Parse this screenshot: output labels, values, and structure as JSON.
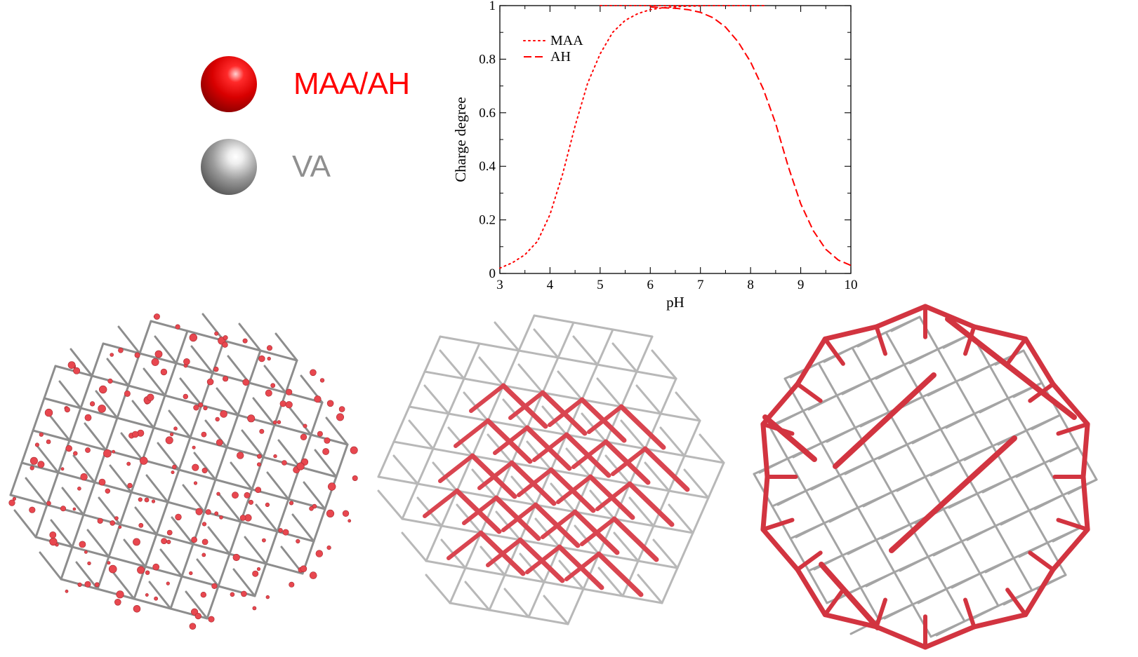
{
  "legend": {
    "items": [
      {
        "label": "MAA/AH",
        "color": "#ff0000",
        "ball": "red-sphere"
      },
      {
        "label": "VA",
        "color": "#888888",
        "ball": "grey-sphere"
      }
    ]
  },
  "chart_data": {
    "type": "line",
    "xlabel": "pH",
    "ylabel": "Charge degree",
    "xlim": [
      3,
      10
    ],
    "ylim": [
      0,
      1
    ],
    "xticks": [
      3,
      4,
      5,
      6,
      7,
      8,
      9,
      10
    ],
    "yticks": [
      0,
      0.2,
      0.4,
      0.6,
      0.8,
      1
    ],
    "ytick_labels": [
      "0",
      "0.2",
      "0.4",
      "0.6",
      "0.8",
      "1"
    ],
    "legend_position": "top-left",
    "series": [
      {
        "name": "MAA",
        "style": "dotted",
        "color": "#ff0000",
        "x": [
          3.0,
          3.25,
          3.5,
          3.75,
          4.0,
          4.25,
          4.5,
          4.75,
          5.0,
          5.25,
          5.5,
          5.75,
          6.0,
          6.25,
          6.5,
          6.75,
          7.0
        ],
        "y": [
          0.02,
          0.04,
          0.07,
          0.12,
          0.22,
          0.37,
          0.55,
          0.71,
          0.82,
          0.9,
          0.945,
          0.97,
          0.985,
          0.992,
          0.996,
          0.998,
          0.999
        ]
      },
      {
        "name": "AH",
        "style": "dashed",
        "color": "#ff0000",
        "x": [
          6.0,
          6.25,
          6.5,
          6.75,
          7.0,
          7.25,
          7.5,
          7.75,
          8.0,
          8.25,
          8.5,
          8.75,
          9.0,
          9.25,
          9.5,
          9.75,
          10.0
        ],
        "y": [
          0.995,
          0.992,
          0.99,
          0.985,
          0.975,
          0.955,
          0.92,
          0.865,
          0.79,
          0.69,
          0.56,
          0.4,
          0.26,
          0.16,
          0.09,
          0.05,
          0.03
        ]
      },
      {
        "name": "",
        "style": "dotted",
        "color": "#ff0000",
        "x": [
          5.0,
          6.0,
          7.0,
          8.0,
          8.3
        ],
        "y": [
          1.0,
          1.0,
          1.0,
          1.0,
          1.0
        ]
      }
    ]
  },
  "networks": [
    {
      "name": "network-left",
      "highlight": "scattered-beads"
    },
    {
      "name": "network-middle",
      "highlight": "core-sticks"
    },
    {
      "name": "network-right",
      "highlight": "outer-shell-sticks"
    }
  ],
  "colors": {
    "red": "#d9303a",
    "grey": "#9a9a9a",
    "accent": "#ff0000"
  }
}
